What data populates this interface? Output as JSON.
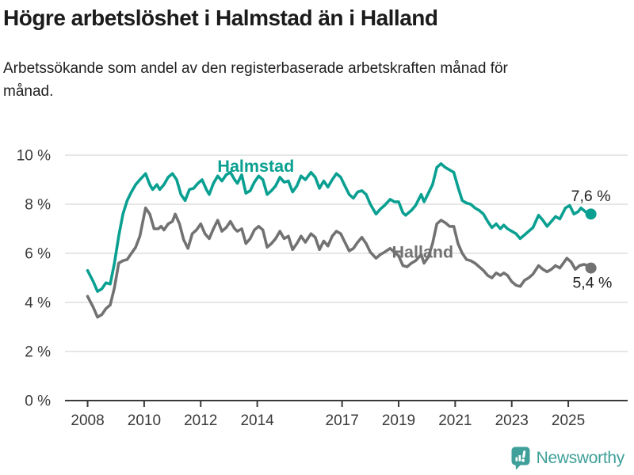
{
  "header": {
    "title": "Högre arbetslöshet i Halmstad än i Halland",
    "subtitle": "Arbetssökande som andel av den registerbaserade arbetskraften månad för månad."
  },
  "chart_data": {
    "type": "line",
    "title": "Högre arbetslöshet i Halmstad än i Halland",
    "xlabel": "",
    "ylabel": "",
    "x_unit": "year (monthly data)",
    "xlim": [
      2007.2,
      2027.1
    ],
    "ylim": [
      0,
      10
    ],
    "grid": "horizontal",
    "grid_color": "#d8d8d8",
    "axis_color": "#3a3a3a",
    "tick_label_color": "#3a3a3a",
    "value_label_color": "#222222",
    "y_ticks": [
      {
        "value": 10,
        "label": "10 %"
      },
      {
        "value": 8,
        "label": "8 %"
      },
      {
        "value": 6,
        "label": "6 %"
      },
      {
        "value": 4,
        "label": "4 %"
      },
      {
        "value": 2,
        "label": "2 %"
      },
      {
        "value": 0,
        "label": "0 %"
      }
    ],
    "x_ticks": [
      {
        "value": 2008,
        "label": "2008"
      },
      {
        "value": 2010,
        "label": "2010"
      },
      {
        "value": 2012,
        "label": "2012"
      },
      {
        "value": 2014,
        "label": "2014"
      },
      {
        "value": 2017,
        "label": "2017"
      },
      {
        "value": 2019,
        "label": "2019"
      },
      {
        "value": 2021,
        "label": "2021"
      },
      {
        "value": 2023,
        "label": "2023"
      },
      {
        "value": 2025,
        "label": "2025"
      }
    ],
    "series": [
      {
        "name": "Halland",
        "color": "#727272",
        "name_label_pos": {
          "year": 2019.85,
          "value": 6.05
        },
        "value_label": "5,4 %",
        "end_value": 5.4,
        "value_label_pos": {
          "year": 2025.85,
          "value": 4.82
        },
        "points": [
          [
            2008.0,
            4.25
          ],
          [
            2008.2,
            3.8
          ],
          [
            2008.35,
            3.4
          ],
          [
            2008.5,
            3.5
          ],
          [
            2008.65,
            3.75
          ],
          [
            2008.8,
            3.9
          ],
          [
            2008.95,
            4.6
          ],
          [
            2009.1,
            5.6
          ],
          [
            2009.25,
            5.7
          ],
          [
            2009.4,
            5.75
          ],
          [
            2009.55,
            6.0
          ],
          [
            2009.7,
            6.25
          ],
          [
            2009.85,
            6.7
          ],
          [
            2010.05,
            7.85
          ],
          [
            2010.2,
            7.6
          ],
          [
            2010.35,
            7.0
          ],
          [
            2010.5,
            7.0
          ],
          [
            2010.6,
            7.1
          ],
          [
            2010.7,
            6.95
          ],
          [
            2010.85,
            7.2
          ],
          [
            2011.0,
            7.3
          ],
          [
            2011.1,
            7.6
          ],
          [
            2011.25,
            7.2
          ],
          [
            2011.4,
            6.55
          ],
          [
            2011.55,
            6.2
          ],
          [
            2011.7,
            6.8
          ],
          [
            2011.85,
            6.95
          ],
          [
            2012.0,
            7.2
          ],
          [
            2012.15,
            6.8
          ],
          [
            2012.3,
            6.6
          ],
          [
            2012.45,
            7.0
          ],
          [
            2012.6,
            7.35
          ],
          [
            2012.75,
            6.9
          ],
          [
            2012.9,
            7.05
          ],
          [
            2013.05,
            7.3
          ],
          [
            2013.2,
            7.0
          ],
          [
            2013.3,
            6.9
          ],
          [
            2013.45,
            7.0
          ],
          [
            2013.6,
            6.4
          ],
          [
            2013.75,
            6.6
          ],
          [
            2013.9,
            6.95
          ],
          [
            2014.05,
            7.1
          ],
          [
            2014.2,
            6.95
          ],
          [
            2014.35,
            6.25
          ],
          [
            2014.5,
            6.4
          ],
          [
            2014.65,
            6.6
          ],
          [
            2014.8,
            6.9
          ],
          [
            2014.95,
            6.6
          ],
          [
            2015.1,
            6.7
          ],
          [
            2015.25,
            6.15
          ],
          [
            2015.4,
            6.4
          ],
          [
            2015.55,
            6.7
          ],
          [
            2015.7,
            6.45
          ],
          [
            2015.9,
            6.8
          ],
          [
            2016.05,
            6.65
          ],
          [
            2016.2,
            6.15
          ],
          [
            2016.35,
            6.5
          ],
          [
            2016.5,
            6.3
          ],
          [
            2016.65,
            6.7
          ],
          [
            2016.8,
            6.9
          ],
          [
            2016.95,
            6.8
          ],
          [
            2017.1,
            6.45
          ],
          [
            2017.25,
            6.1
          ],
          [
            2017.4,
            6.2
          ],
          [
            2017.55,
            6.45
          ],
          [
            2017.7,
            6.65
          ],
          [
            2017.85,
            6.4
          ],
          [
            2018.0,
            6.05
          ],
          [
            2018.2,
            5.8
          ],
          [
            2018.35,
            5.95
          ],
          [
            2018.5,
            6.05
          ],
          [
            2018.7,
            6.2
          ],
          [
            2018.85,
            6.05
          ],
          [
            2019.0,
            5.9
          ],
          [
            2019.15,
            5.5
          ],
          [
            2019.3,
            5.45
          ],
          [
            2019.45,
            5.6
          ],
          [
            2019.6,
            5.7
          ],
          [
            2019.8,
            5.95
          ],
          [
            2019.9,
            5.6
          ],
          [
            2020.05,
            5.85
          ],
          [
            2020.2,
            6.4
          ],
          [
            2020.35,
            7.2
          ],
          [
            2020.5,
            7.35
          ],
          [
            2020.65,
            7.25
          ],
          [
            2020.8,
            7.1
          ],
          [
            2020.95,
            7.1
          ],
          [
            2021.1,
            6.4
          ],
          [
            2021.25,
            6.0
          ],
          [
            2021.4,
            5.75
          ],
          [
            2021.55,
            5.7
          ],
          [
            2021.7,
            5.6
          ],
          [
            2021.85,
            5.45
          ],
          [
            2022.0,
            5.3
          ],
          [
            2022.15,
            5.1
          ],
          [
            2022.3,
            5.0
          ],
          [
            2022.45,
            5.2
          ],
          [
            2022.6,
            5.1
          ],
          [
            2022.72,
            5.2
          ],
          [
            2022.85,
            5.1
          ],
          [
            2023.0,
            4.85
          ],
          [
            2023.15,
            4.7
          ],
          [
            2023.3,
            4.65
          ],
          [
            2023.45,
            4.9
          ],
          [
            2023.6,
            5.0
          ],
          [
            2023.75,
            5.15
          ],
          [
            2023.95,
            5.5
          ],
          [
            2024.1,
            5.35
          ],
          [
            2024.25,
            5.25
          ],
          [
            2024.4,
            5.35
          ],
          [
            2024.55,
            5.5
          ],
          [
            2024.7,
            5.4
          ],
          [
            2024.95,
            5.8
          ],
          [
            2025.1,
            5.65
          ],
          [
            2025.25,
            5.35
          ],
          [
            2025.4,
            5.5
          ],
          [
            2025.55,
            5.55
          ],
          [
            2025.7,
            5.5
          ],
          [
            2025.8,
            5.4
          ]
        ]
      },
      {
        "name": "Halmstad",
        "color": "#0aa091",
        "name_label_pos": {
          "year": 2013.95,
          "value": 9.55
        },
        "value_label": "7,6 %",
        "end_value": 7.6,
        "value_label_pos": {
          "year": 2025.8,
          "value": 8.35
        },
        "points": [
          [
            2008.0,
            5.3
          ],
          [
            2008.2,
            4.85
          ],
          [
            2008.35,
            4.45
          ],
          [
            2008.5,
            4.55
          ],
          [
            2008.65,
            4.8
          ],
          [
            2008.8,
            4.75
          ],
          [
            2008.95,
            5.6
          ],
          [
            2009.1,
            6.7
          ],
          [
            2009.25,
            7.6
          ],
          [
            2009.4,
            8.15
          ],
          [
            2009.55,
            8.5
          ],
          [
            2009.7,
            8.8
          ],
          [
            2009.85,
            9.0
          ],
          [
            2010.05,
            9.25
          ],
          [
            2010.2,
            8.8
          ],
          [
            2010.3,
            8.6
          ],
          [
            2010.45,
            8.8
          ],
          [
            2010.55,
            8.6
          ],
          [
            2010.7,
            8.8
          ],
          [
            2010.85,
            9.1
          ],
          [
            2011.0,
            9.25
          ],
          [
            2011.15,
            9.0
          ],
          [
            2011.3,
            8.4
          ],
          [
            2011.45,
            8.15
          ],
          [
            2011.6,
            8.6
          ],
          [
            2011.75,
            8.65
          ],
          [
            2011.9,
            8.85
          ],
          [
            2012.05,
            9.0
          ],
          [
            2012.2,
            8.6
          ],
          [
            2012.3,
            8.4
          ],
          [
            2012.45,
            8.85
          ],
          [
            2012.6,
            9.15
          ],
          [
            2012.75,
            8.95
          ],
          [
            2012.9,
            9.2
          ],
          [
            2013.05,
            9.3
          ],
          [
            2013.2,
            9.0
          ],
          [
            2013.3,
            8.85
          ],
          [
            2013.45,
            9.2
          ],
          [
            2013.6,
            8.45
          ],
          [
            2013.75,
            8.55
          ],
          [
            2013.9,
            8.9
          ],
          [
            2014.05,
            9.15
          ],
          [
            2014.2,
            9.0
          ],
          [
            2014.35,
            8.4
          ],
          [
            2014.5,
            8.55
          ],
          [
            2014.65,
            8.75
          ],
          [
            2014.8,
            9.1
          ],
          [
            2014.95,
            8.9
          ],
          [
            2015.1,
            8.95
          ],
          [
            2015.25,
            8.5
          ],
          [
            2015.4,
            8.75
          ],
          [
            2015.55,
            9.15
          ],
          [
            2015.7,
            9.0
          ],
          [
            2015.9,
            9.3
          ],
          [
            2016.05,
            9.1
          ],
          [
            2016.2,
            8.65
          ],
          [
            2016.35,
            8.95
          ],
          [
            2016.5,
            8.7
          ],
          [
            2016.65,
            9.0
          ],
          [
            2016.8,
            9.25
          ],
          [
            2016.95,
            9.1
          ],
          [
            2017.1,
            8.75
          ],
          [
            2017.25,
            8.4
          ],
          [
            2017.4,
            8.25
          ],
          [
            2017.55,
            8.5
          ],
          [
            2017.7,
            8.55
          ],
          [
            2017.85,
            8.4
          ],
          [
            2018.0,
            8.0
          ],
          [
            2018.2,
            7.6
          ],
          [
            2018.35,
            7.8
          ],
          [
            2018.5,
            7.95
          ],
          [
            2018.7,
            8.2
          ],
          [
            2018.85,
            8.1
          ],
          [
            2019.0,
            8.1
          ],
          [
            2019.15,
            7.65
          ],
          [
            2019.25,
            7.55
          ],
          [
            2019.45,
            7.75
          ],
          [
            2019.6,
            7.95
          ],
          [
            2019.8,
            8.4
          ],
          [
            2019.9,
            8.1
          ],
          [
            2020.05,
            8.45
          ],
          [
            2020.2,
            8.8
          ],
          [
            2020.35,
            9.5
          ],
          [
            2020.5,
            9.65
          ],
          [
            2020.65,
            9.5
          ],
          [
            2020.8,
            9.4
          ],
          [
            2020.95,
            9.3
          ],
          [
            2021.1,
            8.7
          ],
          [
            2021.25,
            8.15
          ],
          [
            2021.4,
            8.05
          ],
          [
            2021.55,
            8.0
          ],
          [
            2021.7,
            7.85
          ],
          [
            2021.85,
            7.75
          ],
          [
            2022.0,
            7.6
          ],
          [
            2022.15,
            7.3
          ],
          [
            2022.3,
            7.05
          ],
          [
            2022.45,
            7.2
          ],
          [
            2022.6,
            7.0
          ],
          [
            2022.72,
            7.15
          ],
          [
            2022.85,
            7.0
          ],
          [
            2023.0,
            6.9
          ],
          [
            2023.15,
            6.8
          ],
          [
            2023.3,
            6.6
          ],
          [
            2023.45,
            6.75
          ],
          [
            2023.6,
            6.9
          ],
          [
            2023.75,
            7.05
          ],
          [
            2023.95,
            7.55
          ],
          [
            2024.1,
            7.35
          ],
          [
            2024.25,
            7.1
          ],
          [
            2024.4,
            7.3
          ],
          [
            2024.55,
            7.5
          ],
          [
            2024.7,
            7.4
          ],
          [
            2024.9,
            7.85
          ],
          [
            2025.05,
            7.95
          ],
          [
            2025.2,
            7.6
          ],
          [
            2025.35,
            7.7
          ],
          [
            2025.45,
            7.85
          ],
          [
            2025.6,
            7.7
          ],
          [
            2025.8,
            7.6
          ]
        ]
      }
    ]
  },
  "footer": {
    "brand": "Newsworthy",
    "brand_color": "#3fa099",
    "logo_icon": "bar-chart-bubble-icon"
  }
}
